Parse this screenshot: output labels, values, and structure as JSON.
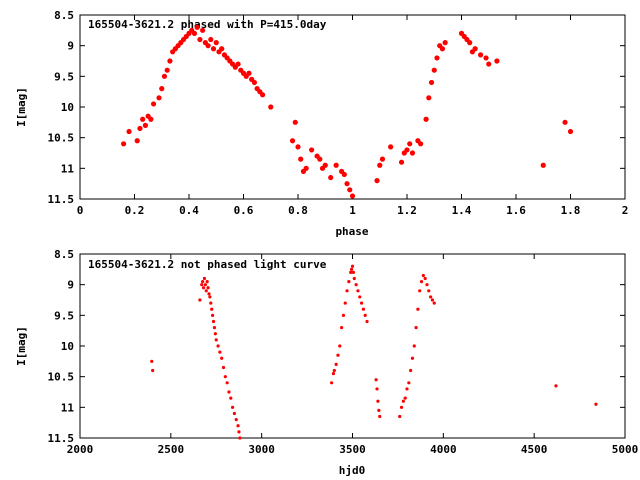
{
  "chart_data": [
    {
      "type": "scatter",
      "title": "165504-3621.2  phased with P=415.0day",
      "xlabel": "phase",
      "ylabel": "I[mag]",
      "xlim": [
        0,
        2
      ],
      "ylim": [
        8.5,
        11.5
      ],
      "y_inverted": true,
      "xticks": [
        "0",
        "0.2",
        "0.4",
        "0.6",
        "0.8",
        "1",
        "1.2",
        "1.4",
        "1.6",
        "1.8",
        "2"
      ],
      "yticks": [
        "8.5",
        "9",
        "9.5",
        "10",
        "10.5",
        "11",
        "11.5"
      ],
      "marker": "filled-circle-large",
      "color": "#ff0000",
      "grid": false,
      "series": [
        {
          "x": [
            0.16,
            0.18,
            0.21,
            0.22,
            0.23,
            0.24,
            0.25,
            0.26,
            0.27,
            0.29,
            0.3,
            0.31,
            0.32,
            0.33,
            0.34,
            0.35,
            0.36,
            0.37,
            0.38,
            0.39,
            0.4,
            0.41,
            0.42,
            0.43,
            0.44,
            0.45,
            0.46,
            0.47,
            0.48,
            0.49,
            0.5,
            0.51,
            0.52,
            0.53,
            0.54,
            0.55,
            0.56,
            0.57,
            0.58,
            0.59,
            0.6,
            0.61,
            0.62,
            0.63,
            0.64,
            0.65,
            0.66,
            0.67,
            0.7,
            0.78,
            0.79,
            0.8,
            0.81,
            0.82,
            0.83,
            0.85,
            0.87,
            0.88,
            0.89,
            0.9,
            0.92,
            0.94,
            0.96,
            0.97,
            0.98,
            0.99,
            1.0,
            1.09,
            1.1,
            1.11,
            1.14,
            1.18,
            1.19,
            1.2,
            1.21,
            1.22,
            1.24,
            1.25,
            1.27,
            1.28,
            1.29,
            1.3,
            1.31,
            1.32,
            1.33,
            1.34,
            1.4,
            1.41,
            1.42,
            1.43,
            1.44,
            1.45,
            1.47,
            1.49,
            1.5,
            1.53,
            1.7,
            1.78,
            1.8
          ],
          "y": [
            10.6,
            10.4,
            10.55,
            10.35,
            10.2,
            10.3,
            10.15,
            10.2,
            9.95,
            9.85,
            9.7,
            9.5,
            9.4,
            9.25,
            9.1,
            9.05,
            9.0,
            8.95,
            8.9,
            8.85,
            8.8,
            8.75,
            8.8,
            8.7,
            8.9,
            8.75,
            8.95,
            9.0,
            8.9,
            9.05,
            8.95,
            9.1,
            9.05,
            9.15,
            9.2,
            9.25,
            9.3,
            9.35,
            9.3,
            9.4,
            9.45,
            9.5,
            9.45,
            9.55,
            9.6,
            9.7,
            9.75,
            9.8,
            10.0,
            10.55,
            10.25,
            10.65,
            10.85,
            11.05,
            11.0,
            10.7,
            10.8,
            10.85,
            11.0,
            10.95,
            11.15,
            10.95,
            11.05,
            11.1,
            11.25,
            11.35,
            11.45,
            11.2,
            10.95,
            10.85,
            10.65,
            10.9,
            10.75,
            10.7,
            10.6,
            10.75,
            10.55,
            10.6,
            10.2,
            9.85,
            9.6,
            9.4,
            9.2,
            9.0,
            9.05,
            8.95,
            8.8,
            8.85,
            8.9,
            8.95,
            9.1,
            9.05,
            9.15,
            9.2,
            9.3,
            9.25,
            10.95,
            10.25,
            10.4
          ]
        }
      ]
    },
    {
      "type": "scatter",
      "title": "165504-3621.2  not phased light curve",
      "xlabel": "hjd0",
      "ylabel": "I[mag]",
      "xlim": [
        2000,
        5000
      ],
      "ylim": [
        8.5,
        11.5
      ],
      "y_inverted": true,
      "xticks": [
        "2000",
        "2500",
        "3000",
        "3500",
        "4000",
        "4500",
        "5000"
      ],
      "yticks": [
        "8.5",
        "9",
        "9.5",
        "10",
        "10.5",
        "11",
        "11.5"
      ],
      "marker": "filled-circle-small",
      "color": "#ff0000",
      "grid": false,
      "series": [
        {
          "x": [
            2395,
            2400,
            2660,
            2670,
            2675,
            2680,
            2685,
            2690,
            2695,
            2700,
            2705,
            2710,
            2715,
            2720,
            2725,
            2730,
            2735,
            2740,
            2745,
            2750,
            2760,
            2770,
            2780,
            2790,
            2800,
            2810,
            2820,
            2830,
            2840,
            2850,
            2860,
            2870,
            2875,
            2880,
            3385,
            3395,
            3400,
            3410,
            3420,
            3430,
            3440,
            3450,
            3460,
            3470,
            3480,
            3490,
            3495,
            3500,
            3505,
            3510,
            3520,
            3530,
            3540,
            3550,
            3560,
            3570,
            3580,
            3630,
            3635,
            3640,
            3645,
            3650,
            3760,
            3770,
            3780,
            3790,
            3800,
            3810,
            3820,
            3830,
            3840,
            3850,
            3860,
            3870,
            3880,
            3890,
            3900,
            3910,
            3920,
            3930,
            3940,
            3950,
            4620,
            4840
          ],
          "y": [
            10.25,
            10.4,
            9.25,
            9.0,
            8.95,
            9.05,
            8.9,
            9.0,
            9.1,
            8.95,
            9.05,
            9.15,
            9.2,
            9.3,
            9.4,
            9.5,
            9.6,
            9.7,
            9.8,
            9.9,
            10.0,
            10.1,
            10.2,
            10.35,
            10.5,
            10.6,
            10.75,
            10.85,
            11.0,
            11.1,
            11.2,
            11.3,
            11.4,
            11.5,
            10.6,
            10.45,
            10.4,
            10.3,
            10.15,
            10.0,
            9.7,
            9.5,
            9.3,
            9.1,
            8.95,
            8.8,
            8.75,
            8.7,
            8.8,
            8.9,
            9.0,
            9.1,
            9.2,
            9.3,
            9.4,
            9.5,
            9.6,
            10.55,
            10.7,
            10.9,
            11.05,
            11.15,
            11.15,
            11.0,
            10.9,
            10.85,
            10.7,
            10.6,
            10.4,
            10.2,
            10.0,
            9.7,
            9.4,
            9.1,
            8.95,
            8.85,
            8.9,
            9.0,
            9.1,
            9.2,
            9.25,
            9.3,
            10.65,
            10.95
          ]
        }
      ]
    }
  ]
}
